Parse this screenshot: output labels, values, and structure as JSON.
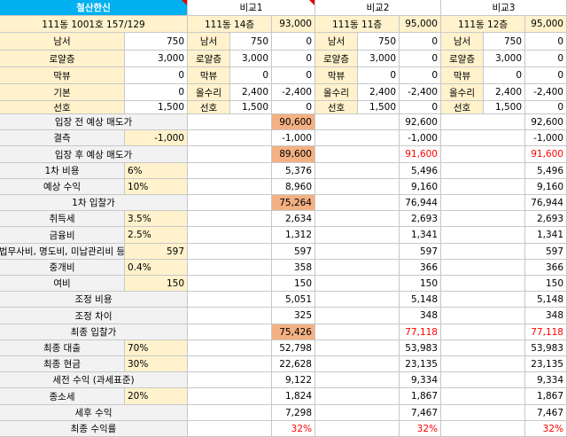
{
  "header": {
    "name": "철산한신",
    "comp1": "비교1",
    "comp2": "비교2",
    "comp3": "비교3"
  },
  "unit_row": {
    "main": "111동 1001호 157/129",
    "comp1_unit": "111동 14층",
    "comp1_price": "93,000",
    "comp2_unit": "111동 11층",
    "comp2_price": "95,000",
    "comp3_unit": "111동 12층",
    "comp3_price": "95,000"
  },
  "attr_rows": [
    {
      "label": "남서",
      "main": "750",
      "c1_label": "남서",
      "c1_a": "750",
      "c1_b": "0",
      "c2_label": "남서",
      "c2_a": "750",
      "c2_b": "0",
      "c3_label": "남서",
      "c3_a": "750",
      "c3_b": "0"
    },
    {
      "label": "로얄층",
      "main": "3,000",
      "c1_label": "로얄층",
      "c1_a": "3,000",
      "c1_b": "0",
      "c2_label": "로얄층",
      "c2_a": "3,000",
      "c2_b": "0",
      "c3_label": "로얄층",
      "c3_a": "3,000",
      "c3_b": "0"
    },
    {
      "label": "막뷰",
      "main": "0",
      "c1_label": "막뷰",
      "c1_a": "0",
      "c1_b": "0",
      "c2_label": "막뷰",
      "c2_a": "0",
      "c2_b": "0",
      "c3_label": "막뷰",
      "c3_a": "0",
      "c3_b": "0"
    },
    {
      "label": "기본",
      "main": "0",
      "c1_label": "올수리",
      "c1_a": "2,400",
      "c1_b": "-2,400",
      "c2_label": "올수리",
      "c2_a": "2,400",
      "c2_b": "-2,400",
      "c3_label": "올수리",
      "c3_a": "2,400",
      "c3_b": "-2,400"
    },
    {
      "label": "선호",
      "main": "1,500",
      "c1_label": "선호",
      "c1_a": "1,500",
      "c1_b": "0",
      "c2_label": "선호",
      "c2_a": "1,500",
      "c2_b": "0",
      "c3_label": "선호",
      "c3_a": "1,500",
      "c3_b": "0"
    }
  ],
  "calc_rows": [
    {
      "label": "입장 전 예상 매도가",
      "param": "",
      "c1": "90,600",
      "c2": "92,600",
      "c3": "92,600"
    },
    {
      "label": "결측",
      "param": "-1,000",
      "c1": "-1,000",
      "c2": "-1,000",
      "c3": "-1,000"
    },
    {
      "label": "입장 후 예상 매도가",
      "param": "",
      "c1": "89,600",
      "c2": "91,600",
      "c3": "91,600"
    },
    {
      "label": "1차 비용",
      "param": "6%",
      "c1": "5,376",
      "c2": "5,496",
      "c3": "5,496"
    },
    {
      "label": "예상 수익",
      "param": "10%",
      "c1": "8,960",
      "c2": "9,160",
      "c3": "9,160"
    },
    {
      "label": "1차 입찰가",
      "param": "",
      "c1": "75,264",
      "c2": "76,944",
      "c3": "76,944"
    },
    {
      "label": "취득세",
      "param": "3.5%",
      "c1": "2,634",
      "c2": "2,693",
      "c3": "2,693"
    },
    {
      "label": "금융비",
      "param": "2.5%",
      "c1": "1,312",
      "c2": "1,341",
      "c3": "1,341"
    },
    {
      "label": "법무사비, 명도비, 미납관리비 등",
      "param": "597",
      "c1": "597",
      "c2": "597",
      "c3": "597"
    },
    {
      "label": "중개비",
      "param": "0.4%",
      "c1": "358",
      "c2": "366",
      "c3": "366"
    },
    {
      "label": "여비",
      "param": "150",
      "c1": "150",
      "c2": "150",
      "c3": "150"
    },
    {
      "label": "조정 비용",
      "param": "",
      "c1": "5,051",
      "c2": "5,148",
      "c3": "5,148"
    },
    {
      "label": "조정 차이",
      "param": "",
      "c1": "325",
      "c2": "348",
      "c3": "348"
    },
    {
      "label": "최종 입찰가",
      "param": "",
      "c1": "75,426",
      "c2": "77,118",
      "c3": "77,118"
    },
    {
      "label": "최종 대출",
      "param": "70%",
      "c1": "52,798",
      "c2": "53,983",
      "c3": "53,983"
    },
    {
      "label": "최종 현금",
      "param": "30%",
      "c1": "22,628",
      "c2": "23,135",
      "c3": "23,135"
    },
    {
      "label": "세전 수익 (과세표준)",
      "param": "",
      "c1": "9,122",
      "c2": "9,334",
      "c3": "9,334"
    },
    {
      "label": "종소세",
      "param": "20%",
      "c1": "1,824",
      "c2": "1,867",
      "c3": "1,867"
    },
    {
      "label": "세후 수익",
      "param": "",
      "c1": "7,298",
      "c2": "7,467",
      "c3": "7,467"
    },
    {
      "label": "최종 수익률",
      "param": "",
      "c1": "32%",
      "c2": "32%",
      "c3": "32%"
    }
  ],
  "colors": {
    "header_cyan": "#00b0f0",
    "param_yellow": "#fff2cc",
    "label_gray": "#f2f2f2",
    "highlight_orange": "#f4b183",
    "alert_red": "#ff0000"
  }
}
